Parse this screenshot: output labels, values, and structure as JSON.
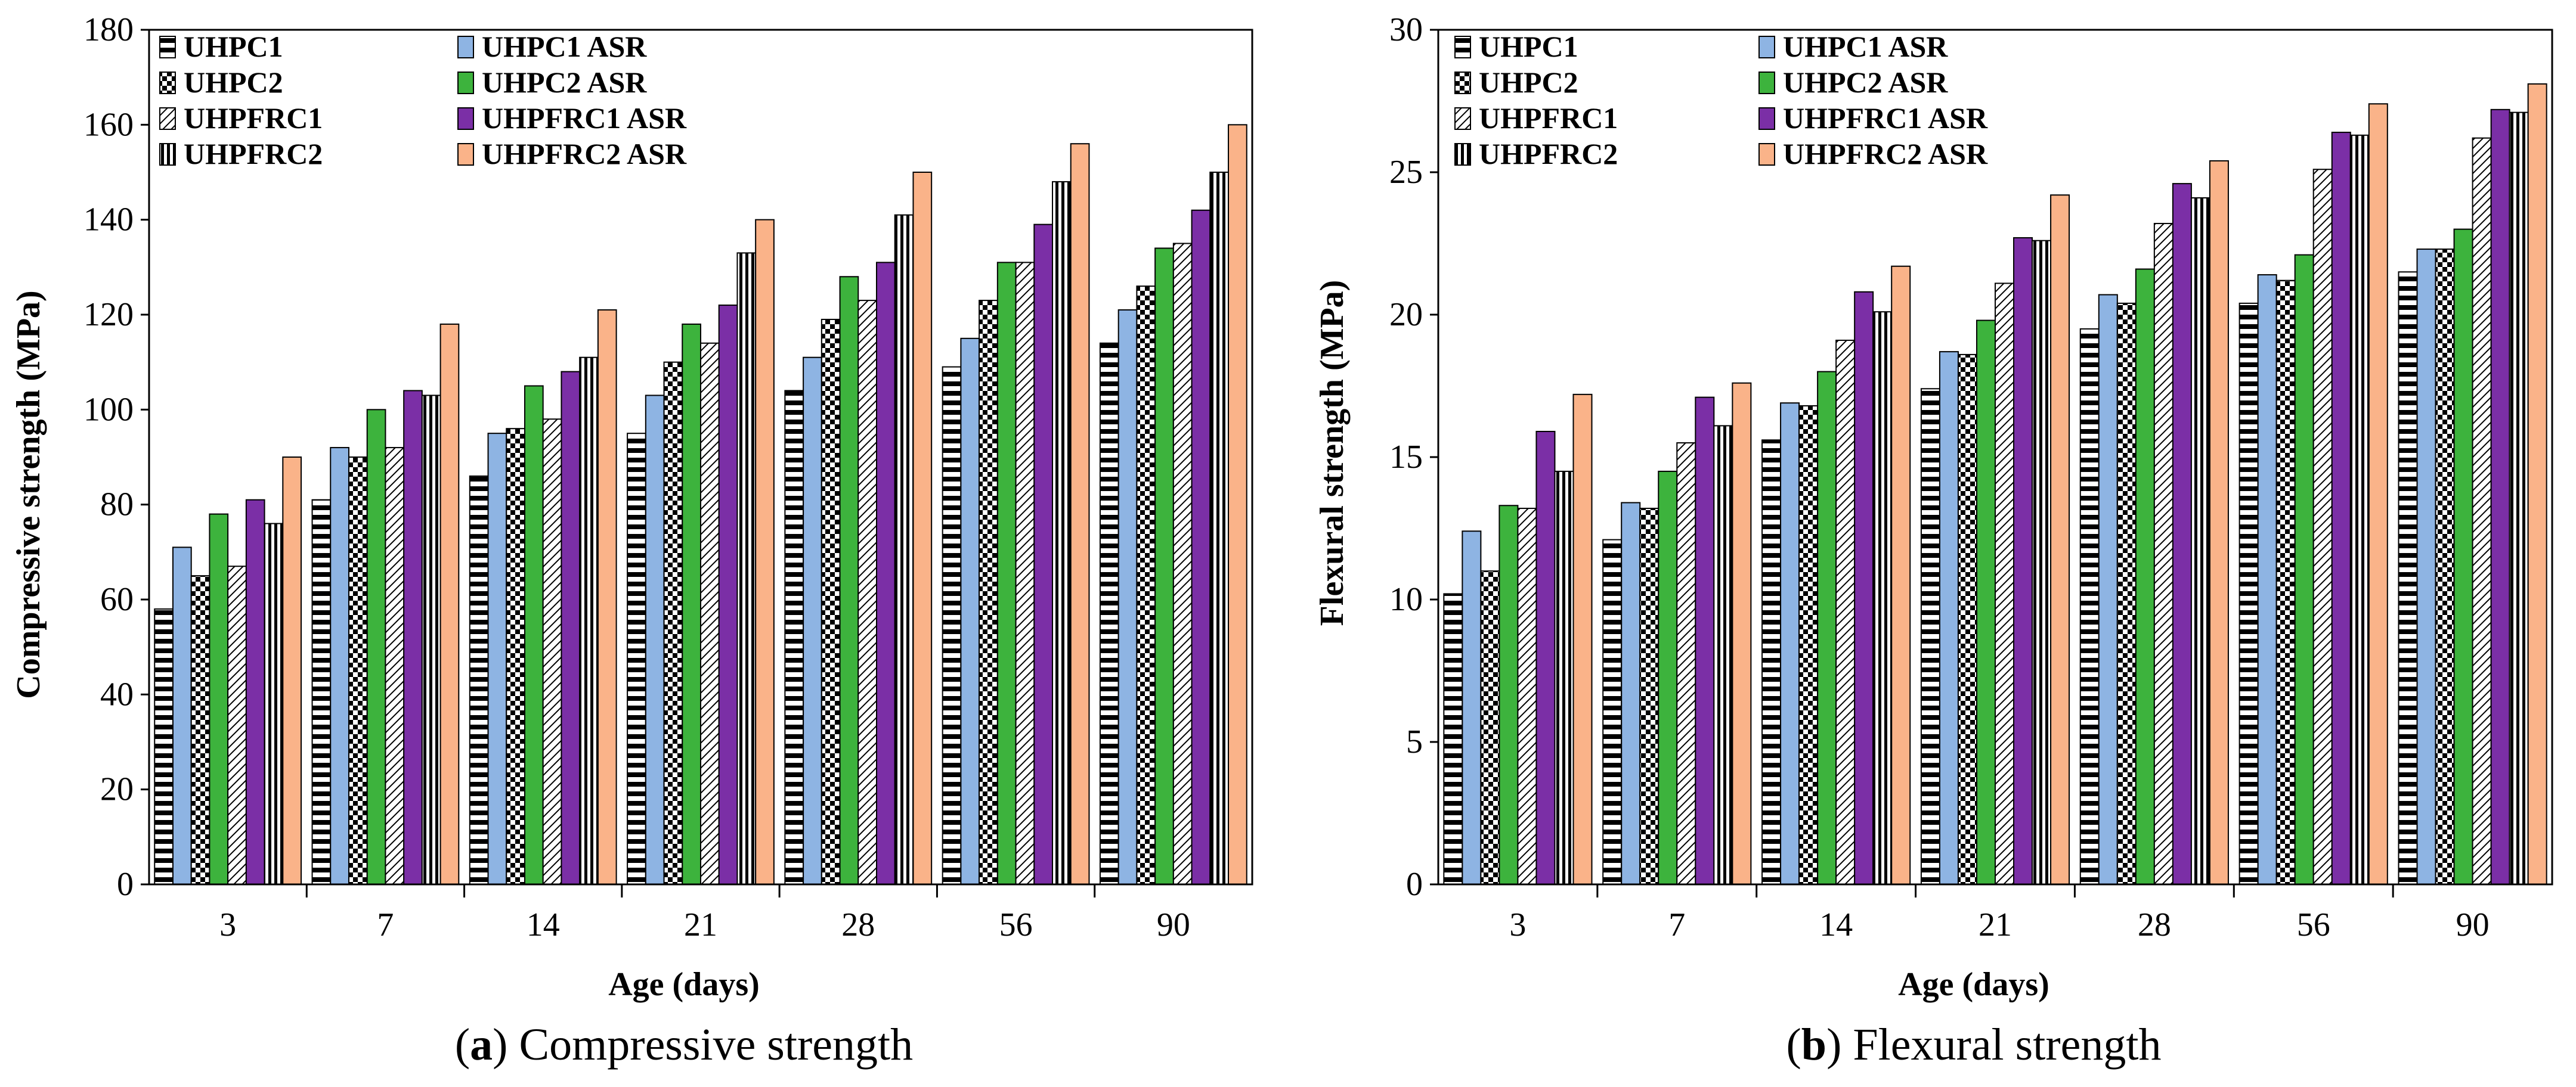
{
  "chart_data": [
    {
      "type": "bar",
      "caption_letter": "a",
      "caption_text": "Compressive strength",
      "xlabel": "Age (days)",
      "ylabel": "Compressive strength (MPa)",
      "categories": [
        "3",
        "7",
        "14",
        "21",
        "28",
        "56",
        "90"
      ],
      "ylim": [
        0,
        180
      ],
      "yticks": [
        "0",
        "20",
        "40",
        "60",
        "80",
        "100",
        "120",
        "140",
        "160",
        "180"
      ],
      "grid": false,
      "legend_position": "top-left",
      "series": [
        {
          "name": "UHPC1",
          "values": [
            58,
            81,
            86,
            95,
            104,
            109,
            114
          ]
        },
        {
          "name": "UHPC1 ASR",
          "values": [
            71,
            92,
            95,
            103,
            111,
            115,
            121
          ]
        },
        {
          "name": "UHPC2",
          "values": [
            65,
            90,
            96,
            110,
            119,
            123,
            126
          ]
        },
        {
          "name": "UHPC2 ASR",
          "values": [
            78,
            100,
            105,
            118,
            128,
            131,
            134
          ]
        },
        {
          "name": "UHPFRC1",
          "values": [
            67,
            92,
            98,
            114,
            123,
            131,
            135
          ]
        },
        {
          "name": "UHPFRC1 ASR",
          "values": [
            81,
            104,
            108,
            122,
            131,
            139,
            142
          ]
        },
        {
          "name": "UHPFRC2",
          "values": [
            76,
            103,
            111,
            133,
            141,
            148,
            150
          ]
        },
        {
          "name": "UHPFRC2 ASR",
          "values": [
            90,
            118,
            121,
            140,
            150,
            156,
            160
          ]
        }
      ]
    },
    {
      "type": "bar",
      "caption_letter": "b",
      "caption_text": "Flexural strength",
      "xlabel": "Age (days)",
      "ylabel": "Flexural strength (MPa)",
      "categories": [
        "3",
        "7",
        "14",
        "21",
        "28",
        "56",
        "90"
      ],
      "ylim": [
        0,
        30
      ],
      "yticks": [
        "0",
        "5",
        "10",
        "15",
        "20",
        "25",
        "30"
      ],
      "grid": false,
      "legend_position": "top-left",
      "series": [
        {
          "name": "UHPC1",
          "values": [
            10.2,
            12.1,
            15.6,
            17.4,
            19.5,
            20.4,
            21.5
          ]
        },
        {
          "name": "UHPC1 ASR",
          "values": [
            12.4,
            13.4,
            16.9,
            18.7,
            20.7,
            21.4,
            22.3
          ]
        },
        {
          "name": "UHPC2",
          "values": [
            11.0,
            13.2,
            16.8,
            18.6,
            20.4,
            21.2,
            22.3
          ]
        },
        {
          "name": "UHPC2 ASR",
          "values": [
            13.3,
            14.5,
            18.0,
            19.8,
            21.6,
            22.1,
            23.0
          ]
        },
        {
          "name": "UHPFRC1",
          "values": [
            13.2,
            15.5,
            19.1,
            21.1,
            23.2,
            25.1,
            26.2
          ]
        },
        {
          "name": "UHPFRC1 ASR",
          "values": [
            15.9,
            17.1,
            20.8,
            22.7,
            24.6,
            26.4,
            27.2
          ]
        },
        {
          "name": "UHPFRC2",
          "values": [
            14.5,
            16.1,
            20.1,
            22.6,
            24.1,
            26.3,
            27.1
          ]
        },
        {
          "name": "UHPFRC2 ASR",
          "values": [
            17.2,
            17.6,
            21.7,
            24.2,
            25.4,
            27.4,
            28.1
          ]
        }
      ]
    }
  ],
  "series_colors": {
    "UHPC1 ASR": "#8EB4E3",
    "UHPC2 ASR": "#3DB33D",
    "UHPFRC1 ASR": "#7B2FA6",
    "UHPFRC2 ASR": "#FAB389"
  }
}
